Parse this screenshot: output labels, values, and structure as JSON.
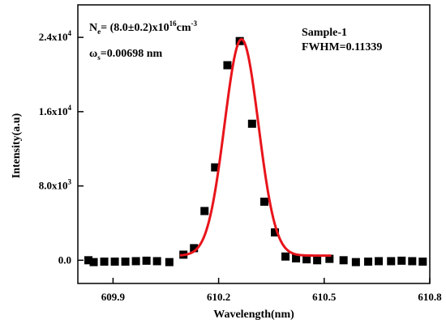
{
  "chart_data": {
    "type": "scatter",
    "xlabel": "Wavelength(nm)",
    "ylabel": "Intensity(a.u)",
    "xlim": [
      609.8,
      610.8
    ],
    "ylim": [
      -2500,
      27500
    ],
    "xticks": [
      609.9,
      610.2,
      610.5,
      610.8
    ],
    "xtick_labels": [
      "609.9",
      "610.2",
      "610.5",
      "610.8"
    ],
    "yticks": [
      0,
      8000,
      16000,
      24000
    ],
    "ytick_labels": [
      {
        "main": "0.0",
        "sup": ""
      },
      {
        "main": "8.0x10",
        "sup": "3"
      },
      {
        "main": "1.6x10",
        "sup": "4"
      },
      {
        "main": "2.4x10",
        "sup": "4"
      }
    ],
    "annotations": {
      "density": {
        "base": "N",
        "sub": "e",
        "rest": "= (8.0±0.2)x10",
        "sup": "16",
        "unit": "cm",
        "unit_sup": "-3"
      },
      "width": {
        "base": "ω",
        "sub": "s",
        "rest": "=0.00698 nm"
      },
      "sample": "Sample-1",
      "fwhm": "FWHM=0.11339"
    },
    "series": [
      {
        "kind": "points",
        "color": "#000000",
        "x": [
          609.83,
          609.845,
          609.875,
          609.905,
          609.935,
          609.965,
          609.995,
          610.025,
          610.06,
          610.1,
          610.13,
          610.16,
          610.19,
          610.225,
          610.26,
          610.295,
          610.33,
          610.36,
          610.39,
          610.42,
          610.45,
          610.48,
          610.515,
          610.555,
          610.59,
          610.625,
          610.655,
          610.69,
          610.72,
          610.75,
          610.78
        ],
        "y": [
          0,
          -200,
          -150,
          -150,
          -150,
          -100,
          -50,
          -100,
          -200,
          600,
          1300,
          5300,
          10000,
          21000,
          23600,
          14700,
          6300,
          3000,
          400,
          200,
          100,
          0,
          150,
          0,
          -200,
          -150,
          -100,
          -100,
          -50,
          -100,
          -150
        ]
      },
      {
        "kind": "fit",
        "color": "#e8141b",
        "fit": {
          "amplitude": 23800,
          "center": 610.265,
          "fwhm": 0.11339,
          "offset": 500,
          "x_range": [
            610.09,
            610.52
          ]
        }
      }
    ]
  }
}
